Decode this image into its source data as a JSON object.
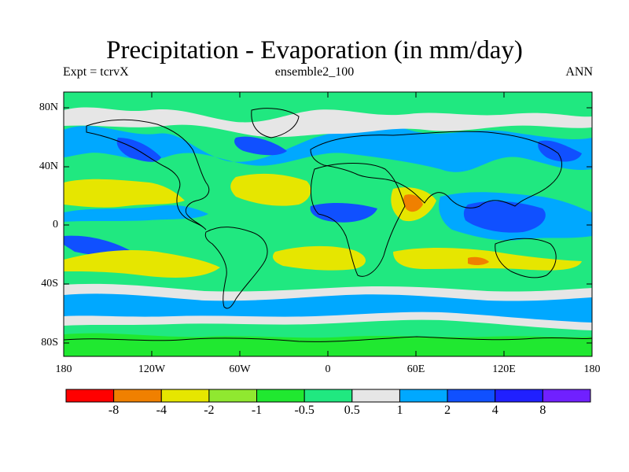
{
  "title": "Precipitation - Evaporation (in mm/day)",
  "subtitle_left": "Expt = tcrvX",
  "subtitle_center": "ensemble2_100",
  "subtitle_right": "ANN",
  "lat_labels": [
    "80N",
    "40N",
    "0",
    "40S",
    "80S"
  ],
  "lon_labels": [
    "180",
    "120W",
    "60W",
    "0",
    "60E",
    "120E",
    "180"
  ],
  "colorbar": {
    "tick_labels": [
      "-8",
      "-4",
      "-2",
      "-1",
      "-0.5",
      "0.5",
      "1",
      "2",
      "4",
      "8"
    ],
    "colors": [
      "#ff0000",
      "#f08000",
      "#e6e600",
      "#90e830",
      "#20e830",
      "#20e880",
      "#e6e6e6",
      "#00a8ff",
      "#1050ff",
      "#2020ff",
      "#7020ff"
    ]
  },
  "map_colors": {
    "ocean_wet_light": "#20e880",
    "dry_1": "#90e830",
    "dry_2": "#e6e600",
    "dry_3": "#f08000",
    "neutral": "#e6e6e6",
    "wet_1": "#00a8ff",
    "wet_2": "#1050ff",
    "wet_3": "#2020ff",
    "slight_dry": "#20e830"
  }
}
